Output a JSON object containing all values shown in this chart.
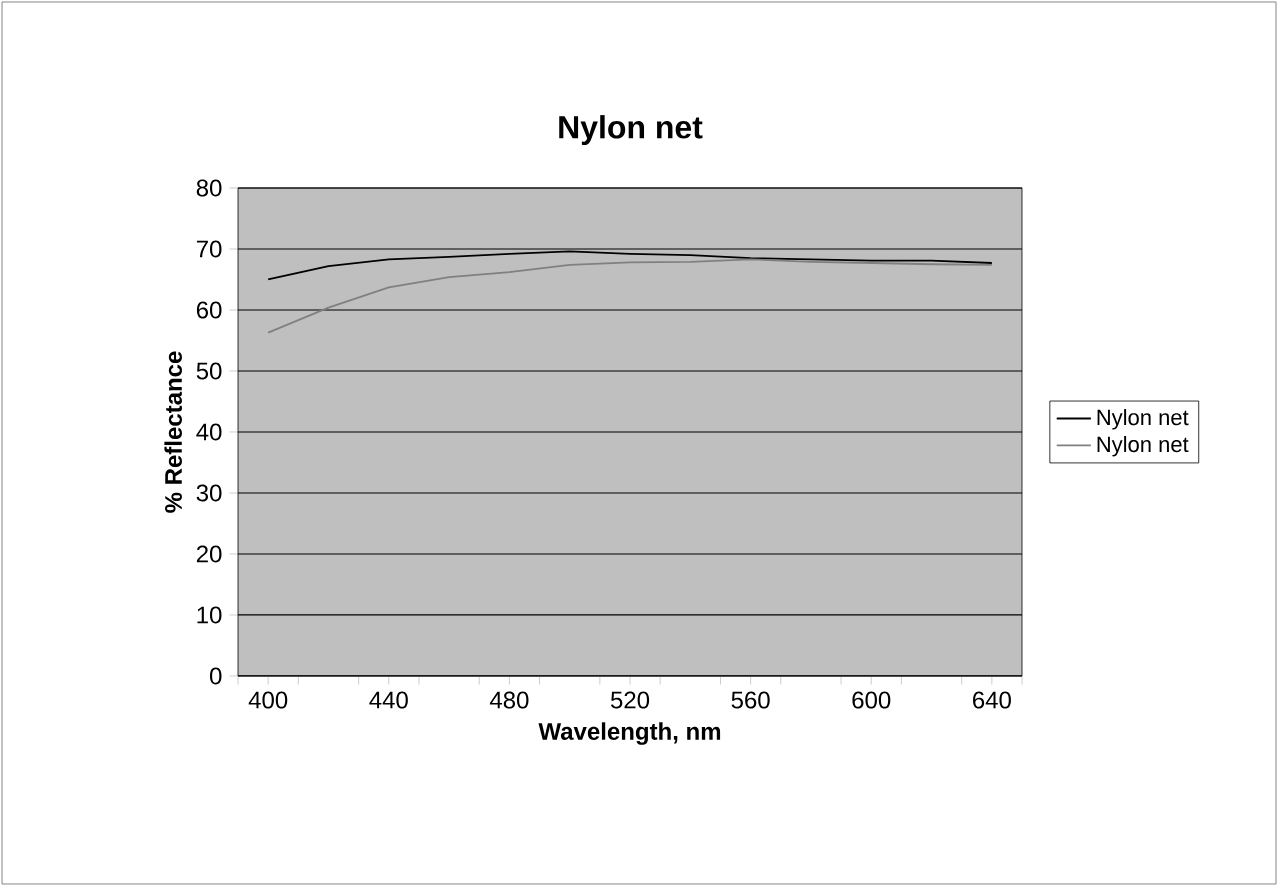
{
  "chart_data": {
    "type": "line",
    "title": "Nylon net",
    "xlabel": "Wavelength, nm",
    "ylabel": "% Reflectance",
    "x": [
      400,
      420,
      440,
      460,
      480,
      500,
      520,
      540,
      560,
      580,
      600,
      620,
      640
    ],
    "series": [
      {
        "name": "Nylon net",
        "color": "#000000",
        "values": [
          65.0,
          67.2,
          68.3,
          68.7,
          69.2,
          69.6,
          69.2,
          69.0,
          68.5,
          68.3,
          68.1,
          68.1,
          67.7
        ]
      },
      {
        "name": "Nylon net",
        "color": "#808080",
        "values": [
          56.3,
          60.4,
          63.7,
          65.4,
          66.2,
          67.4,
          67.8,
          67.9,
          68.3,
          67.9,
          67.7,
          67.5,
          67.4
        ]
      }
    ],
    "xlim": [
      390,
      650
    ],
    "xticks": [
      {
        "value": 390,
        "label": null
      },
      400,
      {
        "value": 410,
        "label": null
      },
      {
        "value": 430,
        "label": null
      },
      440,
      {
        "value": 450,
        "label": null
      },
      {
        "value": 470,
        "label": null
      },
      480,
      {
        "value": 490,
        "label": null
      },
      {
        "value": 510,
        "label": null
      },
      520,
      {
        "value": 530,
        "label": null
      },
      {
        "value": 550,
        "label": null
      },
      560,
      {
        "value": 570,
        "label": null
      },
      {
        "value": 590,
        "label": null
      },
      600,
      {
        "value": 610,
        "label": null
      },
      {
        "value": 630,
        "label": null
      },
      640,
      {
        "value": 650,
        "label": null
      }
    ],
    "ylim": [
      0,
      80
    ],
    "yticks": [
      0,
      10,
      20,
      30,
      40,
      50,
      60,
      70,
      80
    ],
    "grid": "y",
    "legend": "right",
    "marker": "none",
    "line_style": "solid"
  }
}
